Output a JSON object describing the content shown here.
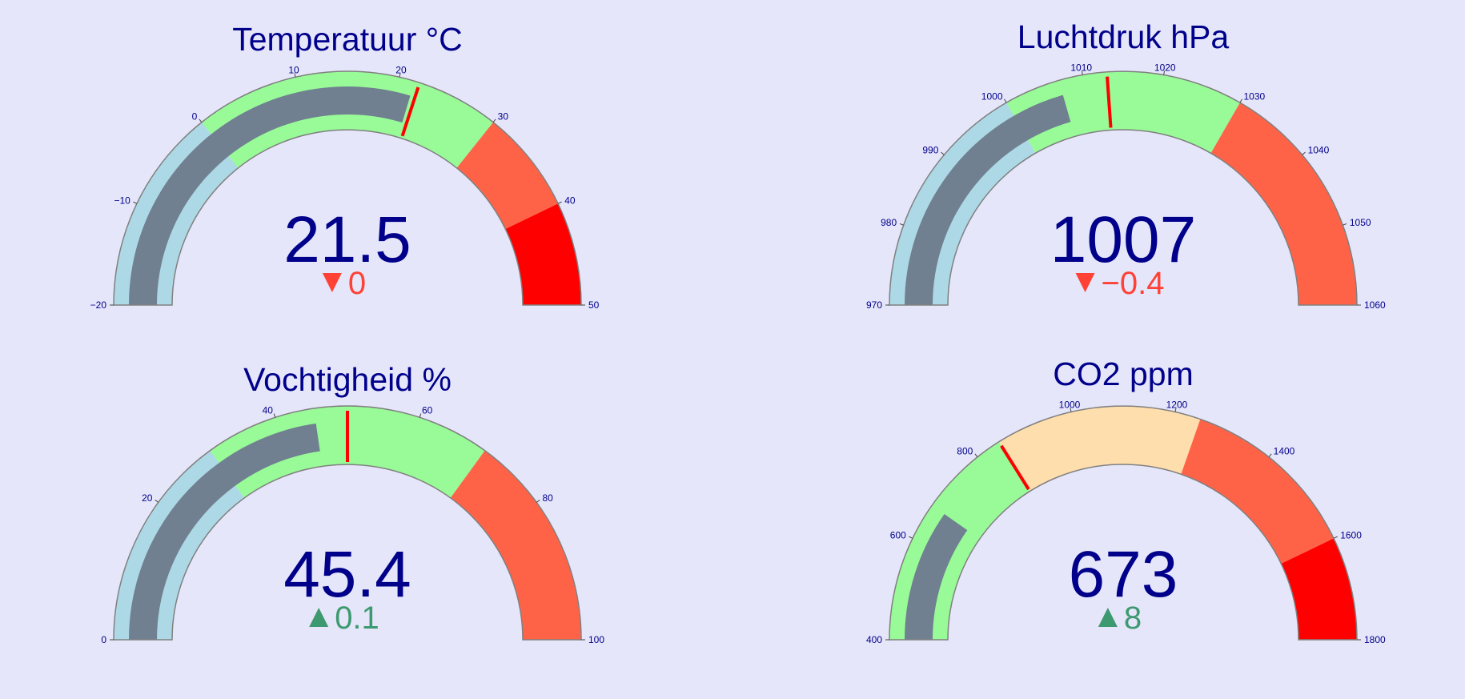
{
  "chart_data": [
    {
      "type": "gauge",
      "title": "Temperatuur °C",
      "value": 21.5,
      "value_text": "21.5",
      "delta": 0,
      "delta_text": "0",
      "delta_direction": "down",
      "reference": 21.5,
      "range": [
        -20,
        50
      ],
      "ticks": [
        -20,
        -10,
        0,
        10,
        20,
        30,
        40,
        50
      ],
      "tick_labels": [
        "−20",
        "−10",
        "0",
        "10",
        "20",
        "30",
        "40",
        "50"
      ],
      "threshold": 22,
      "steps": [
        {
          "range": [
            -20,
            0
          ],
          "color": "#add8e6"
        },
        {
          "range": [
            0,
            30
          ],
          "color": "#98fb98"
        },
        {
          "range": [
            30,
            40
          ],
          "color": "#ff6347"
        },
        {
          "range": [
            40,
            50
          ],
          "color": "#ff0000"
        }
      ],
      "bar_color": "#708090"
    },
    {
      "type": "gauge",
      "title": "Luchtdruk hPa",
      "value": 1007,
      "value_text": "1007",
      "delta": -0.4,
      "delta_text": "−0.4",
      "delta_direction": "down",
      "range": [
        970,
        1060
      ],
      "ticks": [
        970,
        980,
        990,
        1000,
        1010,
        1020,
        1030,
        1040,
        1050,
        1060
      ],
      "tick_labels": [
        "970",
        "980",
        "990",
        "1000",
        "1010",
        "1020",
        "1030",
        "1040",
        "1050",
        "1060"
      ],
      "threshold": 1013,
      "steps": [
        {
          "range": [
            970,
            1000
          ],
          "color": "#add8e6"
        },
        {
          "range": [
            1000,
            1030
          ],
          "color": "#98fb98"
        },
        {
          "range": [
            1030,
            1060
          ],
          "color": "#ff6347"
        }
      ],
      "bar_color": "#708090"
    },
    {
      "type": "gauge",
      "title": "Vochtigheid %",
      "value": 45.4,
      "value_text": "45.4",
      "delta": 0.1,
      "delta_text": "0.1",
      "delta_direction": "up",
      "range": [
        0,
        100
      ],
      "ticks": [
        0,
        20,
        40,
        60,
        80,
        100
      ],
      "tick_labels": [
        "0",
        "20",
        "40",
        "60",
        "80",
        "100"
      ],
      "threshold": 50,
      "steps": [
        {
          "range": [
            0,
            30
          ],
          "color": "#add8e6"
        },
        {
          "range": [
            30,
            70
          ],
          "color": "#98fb98"
        },
        {
          "range": [
            70,
            100
          ],
          "color": "#ff6347"
        }
      ],
      "bar_color": "#708090"
    },
    {
      "type": "gauge",
      "title": "CO2 ppm",
      "value": 673,
      "value_text": "673",
      "delta": 8,
      "delta_text": "8",
      "delta_direction": "up",
      "range": [
        400,
        1800
      ],
      "ticks": [
        400,
        600,
        800,
        1000,
        1200,
        1400,
        1600,
        1800
      ],
      "tick_labels": [
        "400",
        "600",
        "800",
        "1000",
        "1200",
        "1400",
        "1600",
        "1800"
      ],
      "threshold": 850,
      "steps": [
        {
          "range": [
            400,
            850
          ],
          "color": "#98fb98"
        },
        {
          "range": [
            850,
            1250
          ],
          "color": "#ffdead"
        },
        {
          "range": [
            1250,
            1600
          ],
          "color": "#ff6347"
        },
        {
          "range": [
            1600,
            1800
          ],
          "color": "#ff0000"
        }
      ],
      "bar_color": "#708090"
    }
  ],
  "colors": {
    "background": "#e6e6fa",
    "text": "#00008b",
    "threshold": "#ff0000",
    "delta_down": "#ff4136",
    "delta_up": "#3d9970",
    "outline": "#808080"
  }
}
